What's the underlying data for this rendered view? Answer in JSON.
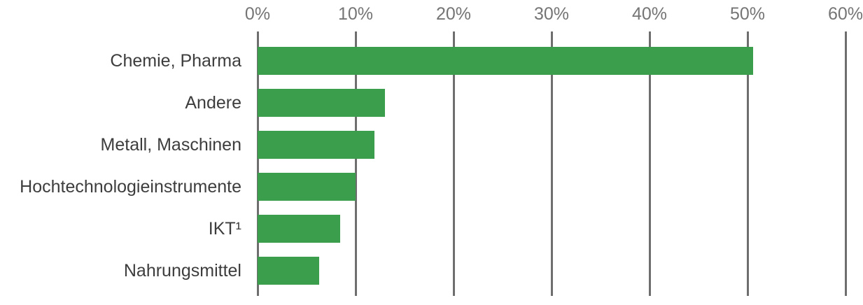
{
  "chart_data": {
    "type": "bar",
    "orientation": "horizontal",
    "title": "",
    "xlabel": "",
    "ylabel": "",
    "categories": [
      "Chemie, Pharma",
      "Andere",
      "Metall, Maschinen",
      "Hochtechnologieinstrumente",
      "IKT¹",
      "Nahrungsmittel"
    ],
    "values": [
      50.6,
      13.0,
      11.9,
      10.0,
      8.4,
      6.3
    ],
    "x_ticks": [
      "0%",
      "10%",
      "20%",
      "30%",
      "40%",
      "50%",
      "60%"
    ],
    "xlim": [
      0,
      60
    ],
    "grid": true,
    "legend": false,
    "axis_position": "top",
    "colors": {
      "bar": "#3a9e4d",
      "gridline": "#6e6e6e",
      "axis_label": "#757575",
      "category_label": "#3d3d3d",
      "background": "#ffffff"
    }
  }
}
